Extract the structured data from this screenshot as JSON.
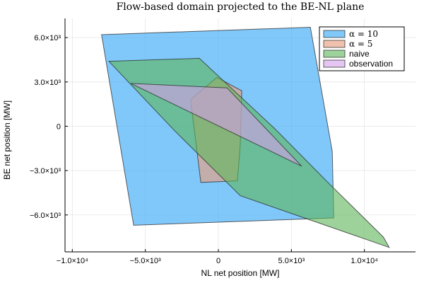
{
  "chart_data": {
    "type": "area",
    "title": "Flow-based domain projected to the BE-NL plane",
    "xlabel": "NL net position [MW]",
    "ylabel": "BE net position [MW]",
    "xlim": [
      -10500,
      13500
    ],
    "ylim": [
      -8500,
      7300
    ],
    "x_ticks": [
      {
        "value": -10000,
        "label": "−1.0×10⁴"
      },
      {
        "value": -5000,
        "label": "−5.0×10³"
      },
      {
        "value": 0,
        "label": "0"
      },
      {
        "value": 5000,
        "label": "5.0×10³"
      },
      {
        "value": 10000,
        "label": "1.0×10⁴"
      }
    ],
    "y_ticks": [
      {
        "value": -6000,
        "label": "−6.0×10³"
      },
      {
        "value": -3000,
        "label": "−3.0×10³"
      },
      {
        "value": 0,
        "label": "0"
      },
      {
        "value": 3000,
        "label": "3.0×10³"
      },
      {
        "value": 6000,
        "label": "6.0×10³"
      }
    ],
    "grid": true,
    "legend_position": "top-right",
    "series": [
      {
        "name": "α = 10",
        "color": "#3daaf7",
        "opacity": 0.65,
        "points": [
          [
            -8000,
            6200
          ],
          [
            6300,
            6700
          ],
          [
            7800,
            -1700
          ],
          [
            7900,
            -6200
          ],
          [
            -5800,
            -6700
          ]
        ]
      },
      {
        "name": "α = 5",
        "color": "#e8a082",
        "opacity": 0.65,
        "points": [
          [
            -1900,
            1800
          ],
          [
            -100,
            3300
          ],
          [
            1600,
            2400
          ],
          [
            1500,
            -1300
          ],
          [
            1300,
            -3700
          ],
          [
            -1200,
            -3800
          ]
        ]
      },
      {
        "name": "naive",
        "color": "#5cb557",
        "opacity": 0.6,
        "points": [
          [
            -7500,
            4400
          ],
          [
            -1300,
            4600
          ],
          [
            3900,
            -200
          ],
          [
            7500,
            -3800
          ],
          [
            11300,
            -7500
          ],
          [
            11700,
            -8200
          ],
          [
            1500,
            -4700
          ],
          [
            -3000,
            -300
          ]
        ]
      },
      {
        "name": "observation",
        "color": "#d39ee8",
        "opacity": 0.6,
        "points": [
          [
            -6000,
            2900
          ],
          [
            600,
            2600
          ],
          [
            5700,
            -2700
          ]
        ]
      }
    ]
  }
}
